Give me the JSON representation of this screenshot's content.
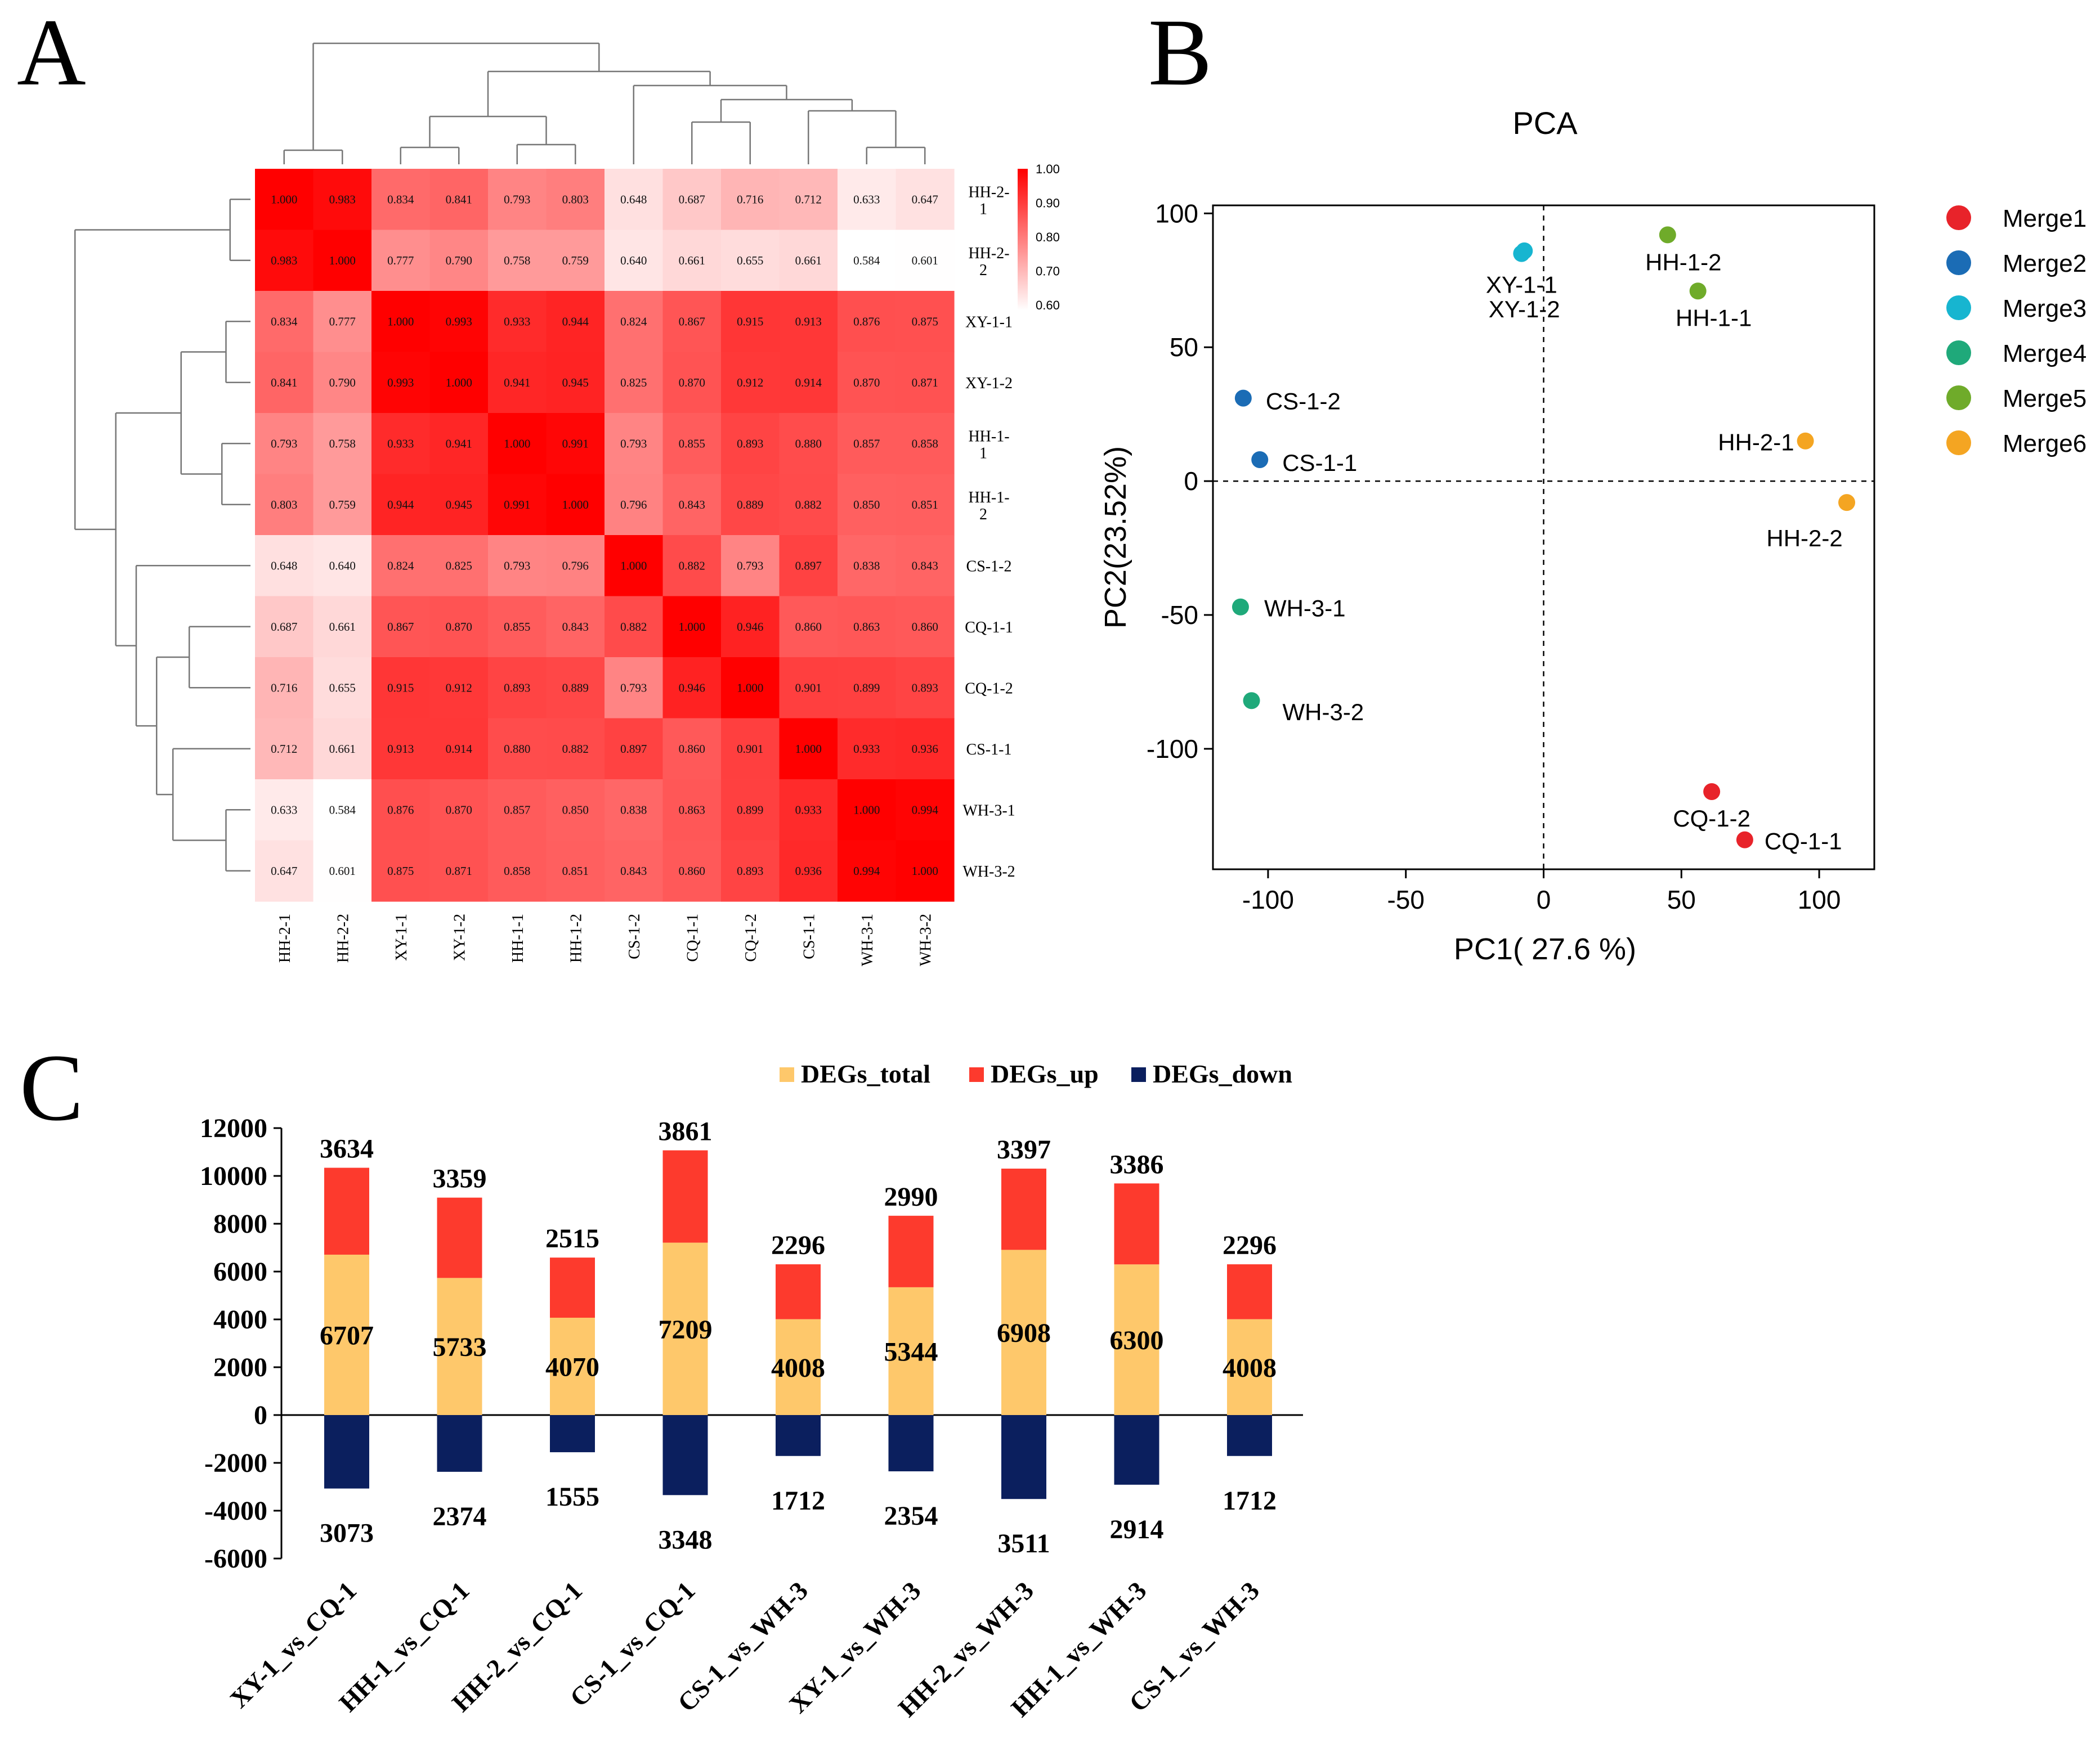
{
  "panel_labels": {
    "a": "A",
    "b": "B",
    "c": "C"
  },
  "chart_data": [
    {
      "type": "heatmap",
      "title": "",
      "samples": [
        "HH-2-1",
        "HH-2-2",
        "XY-1-1",
        "XY-1-2",
        "HH-1-1",
        "HH-1-2",
        "CS-1-2",
        "CQ-1-1",
        "CQ-1-2",
        "CS-1-1",
        "WH-3-1",
        "WH-3-2"
      ],
      "row_labels": [
        "HH-2-\n1",
        "HH-2-\n2",
        "XY-1-1",
        "XY-1-2",
        "HH-1-\n1",
        "HH-1-\n2",
        "CS-1-2",
        "CQ-1-1",
        "CQ-1-2",
        "CS-1-1",
        "WH-3-1",
        "WH-3-2"
      ],
      "matrix": [
        [
          1.0,
          0.983,
          0.834,
          0.841,
          0.793,
          0.803,
          0.648,
          0.687,
          0.716,
          0.712,
          0.633,
          0.647
        ],
        [
          0.983,
          1.0,
          0.777,
          0.79,
          0.758,
          0.759,
          0.64,
          0.661,
          0.655,
          0.661,
          0.584,
          0.601
        ],
        [
          0.834,
          0.777,
          1.0,
          0.993,
          0.933,
          0.944,
          0.824,
          0.867,
          0.915,
          0.913,
          0.876,
          0.875
        ],
        [
          0.841,
          0.79,
          0.993,
          1.0,
          0.941,
          0.945,
          0.825,
          0.87,
          0.912,
          0.914,
          0.87,
          0.871
        ],
        [
          0.793,
          0.758,
          0.933,
          0.941,
          1.0,
          0.991,
          0.793,
          0.855,
          0.893,
          0.88,
          0.857,
          0.858
        ],
        [
          0.803,
          0.759,
          0.944,
          0.945,
          0.991,
          1.0,
          0.796,
          0.843,
          0.889,
          0.882,
          0.85,
          0.851
        ],
        [
          0.648,
          0.64,
          0.824,
          0.825,
          0.793,
          0.796,
          1.0,
          0.882,
          0.793,
          0.897,
          0.838,
          0.843
        ],
        [
          0.687,
          0.661,
          0.867,
          0.87,
          0.855,
          0.843,
          0.882,
          1.0,
          0.946,
          0.86,
          0.863,
          0.86
        ],
        [
          0.716,
          0.655,
          0.915,
          0.912,
          0.893,
          0.889,
          0.793,
          0.946,
          1.0,
          0.901,
          0.899,
          0.893
        ],
        [
          0.712,
          0.661,
          0.913,
          0.914,
          0.88,
          0.882,
          0.897,
          0.86,
          0.901,
          1.0,
          0.933,
          0.936
        ],
        [
          0.633,
          0.584,
          0.876,
          0.87,
          0.857,
          0.85,
          0.838,
          0.863,
          0.899,
          0.933,
          1.0,
          0.994
        ],
        [
          0.647,
          0.601,
          0.875,
          0.871,
          0.858,
          0.851,
          0.843,
          0.86,
          0.893,
          0.936,
          0.994,
          1.0
        ]
      ],
      "colorbar": {
        "ticks": [
          "1.00",
          "0.90",
          "0.80",
          "0.70",
          "0.60"
        ],
        "min": 0.6,
        "max": 1.0,
        "low_color": "#ffffff",
        "high_color": "#ff0000"
      }
    },
    {
      "type": "scatter",
      "title": "PCA",
      "xlabel": "PC1( 27.6 %)",
      "ylabel": "PC2(23.52%)",
      "xlim": [
        -120,
        120
      ],
      "ylim": [
        -145,
        103
      ],
      "xticks": [
        -100,
        -50,
        0,
        50,
        100
      ],
      "yticks": [
        100,
        50,
        0,
        -50,
        -100
      ],
      "points": [
        {
          "label": "XY-1-1",
          "x": -8,
          "y": 85,
          "group": "Merge3"
        },
        {
          "label": "XY-1-2",
          "x": -7,
          "y": 86,
          "group": "Merge3"
        },
        {
          "label": "HH-1-2",
          "x": 45,
          "y": 92,
          "group": "Merge5"
        },
        {
          "label": "HH-1-1",
          "x": 56,
          "y": 71,
          "group": "Merge5"
        },
        {
          "label": "CS-1-2",
          "x": -109,
          "y": 31,
          "group": "Merge2"
        },
        {
          "label": "CS-1-1",
          "x": -103,
          "y": 8,
          "group": "Merge2"
        },
        {
          "label": "HH-2-1",
          "x": 95,
          "y": 15,
          "group": "Merge6"
        },
        {
          "label": "HH-2-2",
          "x": 110,
          "y": -8,
          "group": "Merge6"
        },
        {
          "label": "WH-3-1",
          "x": -110,
          "y": -47,
          "group": "Merge4"
        },
        {
          "label": "WH-3-2",
          "x": -106,
          "y": -82,
          "group": "Merge4"
        },
        {
          "label": "CQ-1-2",
          "x": 61,
          "y": -116,
          "group": "Merge1"
        },
        {
          "label": "CQ-1-1",
          "x": 73,
          "y": -134,
          "group": "Merge1"
        }
      ],
      "legend": [
        {
          "name": "Merge1",
          "color": "#e8232a"
        },
        {
          "name": "Merge2",
          "color": "#1b6cb5"
        },
        {
          "name": "Merge3",
          "color": "#17b5d0"
        },
        {
          "name": "Merge4",
          "color": "#1fa97a"
        },
        {
          "name": "Merge5",
          "color": "#6fab2a"
        },
        {
          "name": "Merge6",
          "color": "#f4a522"
        }
      ]
    },
    {
      "type": "bar",
      "title": "",
      "categories": [
        "XY-1_vs_CQ-1",
        "HH-1_vs_CQ-1",
        "HH-2_vs_CQ-1",
        "CS-1_vs_CQ-1",
        "CS-1_vs_WH-3",
        "XY-1_vs_WH-3",
        "HH-2_vs_WH-3",
        "HH-1_vs_WH-3",
        "CS-1_vs_WH-3"
      ],
      "series": [
        {
          "name": "DEGs_total",
          "color": "#fec86b",
          "values": [
            6707,
            5733,
            4070,
            7209,
            4008,
            5344,
            6908,
            6300,
            4008
          ]
        },
        {
          "name": "DEGs_up",
          "color": "#fd3a2d",
          "values": [
            3634,
            3359,
            2515,
            3861,
            2296,
            2990,
            3397,
            3386,
            2296
          ]
        },
        {
          "name": "DEGs_down",
          "color": "#0b1f5e",
          "values": [
            3073,
            2374,
            1555,
            3348,
            1712,
            2354,
            3511,
            2914,
            1712
          ]
        }
      ],
      "yticks": [
        "12000",
        "10000",
        "8000",
        "6000",
        "4000",
        "2000",
        "0",
        "-2000",
        "-4000",
        "-6000"
      ],
      "ylim": [
        -6000,
        12000
      ]
    }
  ]
}
